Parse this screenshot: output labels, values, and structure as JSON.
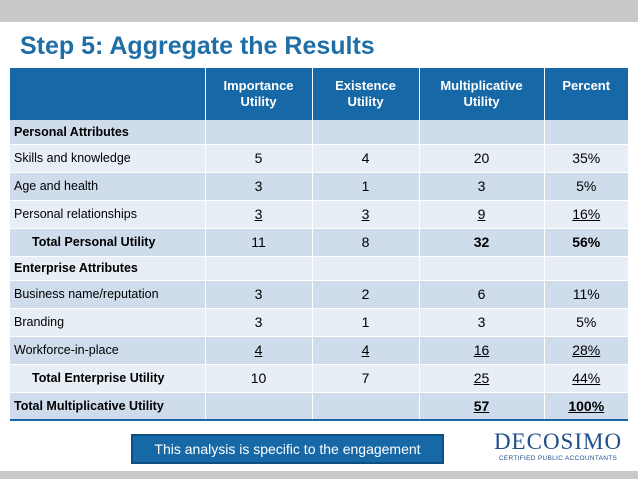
{
  "title": "Step 5: Aggregate the Results",
  "table": {
    "headers": [
      "",
      [
        "Importance",
        "Utility"
      ],
      [
        "Existence",
        "Utility"
      ],
      [
        "Multiplicative",
        "Utility"
      ],
      [
        "Percent"
      ]
    ],
    "rows": [
      {
        "label": "Personal Attributes",
        "values": [
          "",
          "",
          "",
          ""
        ]
      },
      {
        "label": "Skills and knowledge",
        "values": [
          "5",
          "4",
          "20",
          "35%"
        ]
      },
      {
        "label": "Age and health",
        "values": [
          "3",
          "1",
          "3",
          "5%"
        ]
      },
      {
        "label": "Personal relationships",
        "values": [
          "3",
          "3",
          "9",
          "16%"
        ]
      },
      {
        "label": "Total Personal Utility",
        "values": [
          "11",
          "8",
          "32",
          "56%"
        ]
      },
      {
        "label": "Enterprise Attributes",
        "values": [
          "",
          "",
          "",
          ""
        ]
      },
      {
        "label": "Business name/reputation",
        "values": [
          "3",
          "2",
          "6",
          "11%"
        ]
      },
      {
        "label": "Branding",
        "values": [
          "3",
          "1",
          "3",
          "5%"
        ]
      },
      {
        "label": "Workforce-in-place",
        "values": [
          "4",
          "4",
          "16",
          "28%"
        ]
      },
      {
        "label": "Total Enterprise Utility",
        "values": [
          "10",
          "7",
          "25",
          "44%"
        ]
      },
      {
        "label": "Total Multiplicative Utility",
        "values": [
          "",
          "",
          "57",
          "100%"
        ]
      }
    ]
  },
  "note": "This analysis is specific to the engagement",
  "logo": {
    "name": "DECOSIMO",
    "tagline": "CERTIFIED PUBLIC ACCOUNTANTS"
  },
  "colors": {
    "title": "#1f6fa6",
    "header_bg": "#1768a7",
    "row_band_dark": "#cfdcec",
    "row_band_light": "#e8eef6",
    "bar_gray": "#c8c9cb",
    "logo": "#1f4e8c"
  }
}
